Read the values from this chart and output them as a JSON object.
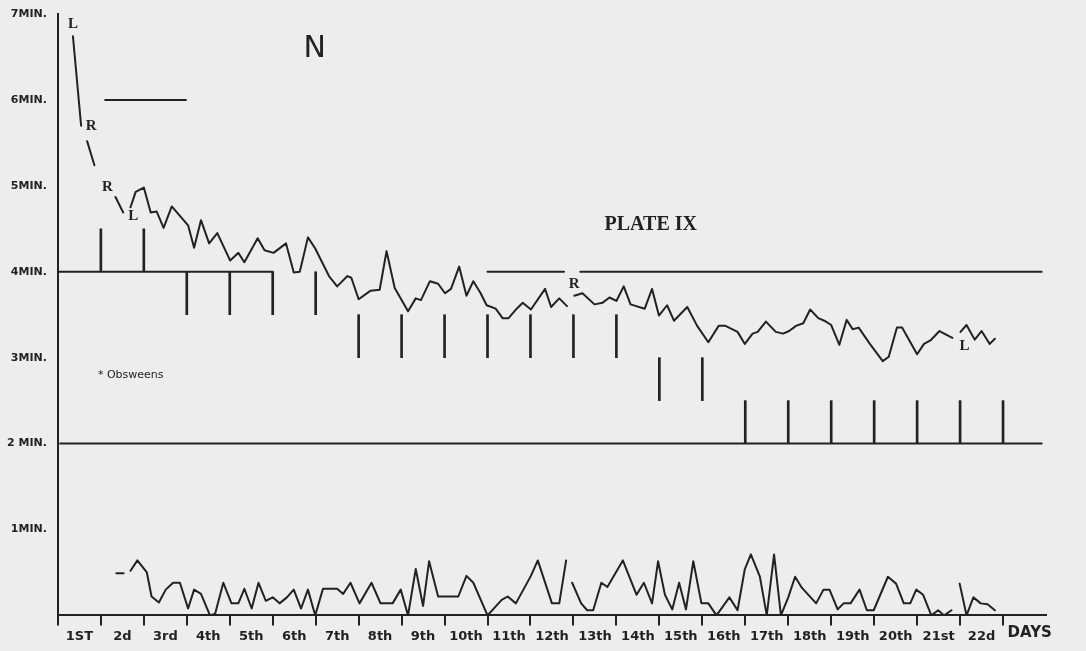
{
  "chart_data": {
    "type": "line",
    "title": "PLATE IX",
    "subtitle": "N",
    "xlabel": "DAYS",
    "xlim": [
      0,
      23
    ],
    "ylim": [
      0,
      7
    ],
    "xticks": [
      {
        "value": 0.5,
        "label": "1ST"
      },
      {
        "value": 1.5,
        "label": "2d"
      },
      {
        "value": 2.5,
        "label": "3rd"
      },
      {
        "value": 3.5,
        "label": "4th"
      },
      {
        "value": 4.5,
        "label": "5th"
      },
      {
        "value": 5.5,
        "label": "6th"
      },
      {
        "value": 6.5,
        "label": "7th"
      },
      {
        "value": 7.5,
        "label": "8th"
      },
      {
        "value": 8.5,
        "label": "9th"
      },
      {
        "value": 9.5,
        "label": "10th"
      },
      {
        "value": 10.5,
        "label": "11th"
      },
      {
        "value": 11.5,
        "label": "12th"
      },
      {
        "value": 12.5,
        "label": "13th"
      },
      {
        "value": 13.5,
        "label": "14th"
      },
      {
        "value": 14.5,
        "label": "15th"
      },
      {
        "value": 15.5,
        "label": "16th"
      },
      {
        "value": 16.5,
        "label": "17th"
      },
      {
        "value": 17.5,
        "label": "18th"
      },
      {
        "value": 18.5,
        "label": "19th"
      },
      {
        "value": 19.5,
        "label": "20th"
      },
      {
        "value": 20.5,
        "label": "21st"
      },
      {
        "value": 21.5,
        "label": "22d"
      }
    ],
    "yticks": [
      {
        "value": 0,
        "label": null
      },
      {
        "value": 1,
        "label": "1MIN."
      },
      {
        "value": 2,
        "label": "2 MIN."
      },
      {
        "value": 3,
        "label": "3MIN."
      },
      {
        "value": 4,
        "label": "4MIN."
      },
      {
        "value": 5,
        "label": "5MIN."
      },
      {
        "value": 6,
        "label": "6MIN."
      },
      {
        "value": 7,
        "label": "7MIN."
      }
    ],
    "annotations": [
      {
        "text": "L",
        "x": 0.35,
        "y": 6.74
      },
      {
        "text": "R",
        "x": 0.54,
        "y": 5.7
      },
      {
        "text": "R",
        "x": 1.34,
        "y": 4.87
      },
      {
        "text": "L",
        "x": 1.52,
        "y": 4.69
      },
      {
        "text": "R",
        "x": 12.02,
        "y": 3.72
      },
      {
        "text": "L",
        "x": 21.01,
        "y": 3.3
      },
      "* Obsweens"
    ],
    "series": [
      {
        "color": "#222222",
        "x": [
          0.35,
          0.54,
          0.6,
          0.68,
          0.85,
          1.0,
          1.34,
          1.52,
          1.6,
          1.69,
          1.81,
          2.0,
          2.16,
          2.3,
          2.46,
          2.65,
          3.03,
          3.17,
          3.33,
          3.52,
          3.71,
          4.01,
          4.2,
          4.34,
          4.65,
          4.81,
          5.02,
          5.31,
          5.49,
          5.63,
          5.82,
          5.99,
          6.31,
          6.5,
          6.74,
          6.83,
          7.0,
          7.28,
          7.49,
          7.65,
          7.84,
          8.15,
          8.33,
          8.45,
          8.66,
          8.85,
          9.01,
          9.15,
          9.34,
          9.51,
          9.67,
          9.84,
          9.98,
          10.19,
          10.35,
          10.49,
          10.68,
          10.82,
          11.01,
          11.34,
          11.48,
          11.67,
          11.85,
          11.93,
          12.02,
          12.21,
          12.49,
          12.68,
          12.84,
          13.0,
          13.17,
          13.33,
          13.66,
          13.83,
          13.99,
          14.18,
          14.34,
          14.65,
          14.88,
          15.14,
          15.38,
          15.54,
          15.82,
          15.99,
          16.17,
          16.29,
          16.48,
          16.71,
          16.88,
          17.02,
          17.18,
          17.35,
          17.51,
          17.7,
          17.84,
          18.0,
          18.19,
          18.36,
          18.5,
          18.64,
          18.9,
          19.2,
          19.34,
          19.53,
          19.65,
          20.0,
          20.16,
          20.31,
          20.52,
          20.82,
          20.9,
          21.01,
          21.15,
          21.34,
          21.5,
          21.69,
          21.81
        ],
        "values": [
          6.74,
          5.7,
          null,
          5.52,
          5.24,
          null,
          4.87,
          4.69,
          null,
          4.75,
          4.93,
          4.98,
          4.69,
          4.7,
          4.51,
          4.76,
          4.54,
          4.28,
          4.6,
          4.33,
          4.45,
          4.13,
          4.22,
          4.11,
          4.39,
          4.25,
          4.22,
          4.33,
          3.99,
          4.0,
          4.4,
          4.27,
          3.95,
          3.83,
          3.95,
          3.93,
          3.68,
          3.78,
          3.79,
          4.24,
          3.81,
          3.54,
          3.69,
          3.67,
          3.89,
          3.86,
          3.75,
          3.8,
          4.06,
          3.72,
          3.89,
          3.75,
          3.61,
          3.57,
          3.46,
          3.46,
          3.57,
          3.64,
          3.56,
          3.8,
          3.59,
          3.69,
          3.6,
          null,
          3.72,
          3.75,
          3.62,
          3.64,
          3.7,
          3.66,
          3.83,
          3.62,
          3.57,
          3.8,
          3.49,
          3.61,
          3.43,
          3.59,
          3.37,
          3.18,
          3.37,
          3.37,
          3.3,
          3.16,
          3.28,
          3.3,
          3.42,
          3.3,
          3.28,
          3.31,
          3.37,
          3.4,
          3.56,
          3.46,
          3.43,
          3.38,
          3.15,
          3.44,
          3.33,
          3.35,
          3.16,
          2.96,
          3.01,
          3.35,
          3.35,
          3.04,
          3.16,
          3.2,
          3.31,
          3.23,
          null,
          3.3,
          3.38,
          3.21,
          3.31,
          3.16,
          3.22
        ]
      },
      {
        "color": "#222222",
        "x": [
          1.36,
          1.53,
          1.6,
          1.69,
          1.85,
          2.07,
          2.18,
          2.35,
          2.51,
          2.68,
          2.84,
          3.03,
          3.17,
          3.33,
          3.54,
          3.66,
          3.85,
          4.04,
          4.2,
          4.34,
          4.51,
          4.67,
          4.84,
          5.0,
          5.16,
          5.33,
          5.49,
          5.66,
          5.82,
          5.99,
          6.17,
          6.5,
          6.64,
          6.81,
          7.02,
          7.3,
          7.51,
          7.79,
          7.98,
          8.15,
          8.33,
          8.5,
          8.64,
          8.85,
          9.32,
          9.51,
          9.67,
          10.0,
          10.33,
          10.47,
          10.66,
          11.01,
          11.17,
          11.5,
          11.67,
          11.83,
          11.9,
          11.97,
          12.18,
          12.32,
          12.46,
          12.65,
          12.79,
          13.15,
          13.47,
          13.64,
          13.83,
          13.97,
          14.13,
          14.3,
          14.46,
          14.62,
          14.79,
          14.98,
          15.14,
          15.33,
          15.63,
          15.82,
          15.99,
          16.13,
          16.34,
          16.5,
          16.67,
          16.83,
          17.0,
          17.16,
          17.32,
          17.65,
          17.82,
          17.96,
          18.15,
          18.29,
          18.45,
          18.66,
          18.83,
          18.99,
          19.32,
          19.51,
          19.69,
          19.84,
          19.98,
          20.14,
          20.33,
          20.49,
          20.63,
          20.8,
          20.9,
          20.99,
          21.15,
          21.31,
          21.48,
          21.64,
          21.81
        ],
        "values": [
          0.49,
          0.49,
          null,
          0.52,
          0.64,
          0.5,
          0.22,
          0.15,
          0.3,
          0.38,
          0.38,
          0.08,
          0.3,
          0.25,
          0,
          0.02,
          0.38,
          0.14,
          0.14,
          0.31,
          0.08,
          0.38,
          0.17,
          0.21,
          0.14,
          0.21,
          0.3,
          0.08,
          0.3,
          0,
          0.31,
          0.31,
          0.25,
          0.38,
          0.14,
          0.38,
          0.14,
          0.14,
          0.3,
          0,
          0.54,
          0.11,
          0.63,
          0.22,
          0.22,
          0.46,
          0.38,
          0,
          0.18,
          0.22,
          0.14,
          0.46,
          0.64,
          0.14,
          0.14,
          0.64,
          null,
          0.38,
          0.14,
          0.06,
          0.06,
          0.38,
          0.33,
          0.64,
          0.24,
          0.38,
          0.14,
          0.63,
          0.24,
          0.07,
          0.38,
          0.07,
          0.63,
          0.14,
          0.14,
          0,
          0.21,
          0.06,
          0.54,
          0.71,
          0.45,
          0,
          0.71,
          0,
          0.21,
          0.45,
          0.32,
          0.14,
          0.3,
          0.3,
          0.07,
          0.14,
          0.14,
          0.3,
          0.06,
          0.06,
          0.45,
          0.37,
          0.14,
          0.14,
          0.3,
          0.24,
          0,
          0.06,
          0,
          0.06,
          null,
          0.37,
          0,
          0.21,
          0.14,
          0.13,
          0.06
        ]
      },
      {
        "color": "#222222",
        "x": [
          0,
          5
        ],
        "values": [
          4,
          4
        ]
      },
      {
        "color": "#222222",
        "x": [
          1.1,
          2.98
        ],
        "values": [
          6,
          6
        ]
      },
      {
        "color": "#222222",
        "x": [
          10,
          11.78
        ],
        "values": [
          4,
          4
        ]
      },
      {
        "color": "#222222",
        "x": [
          12.16,
          22.9
        ],
        "values": [
          4,
          4
        ]
      },
      {
        "color": "#222222",
        "x": [
          0.05,
          22.9
        ],
        "values": [
          2,
          2
        ]
      },
      {
        "type": "bar",
        "color": "#222222",
        "x": [
          1,
          2,
          3,
          4,
          5,
          6,
          7,
          8,
          9,
          10,
          11,
          12,
          13,
          14,
          15,
          16,
          17,
          18,
          19,
          20,
          21,
          22
        ],
        "base": [
          4,
          4,
          3.5,
          3.5,
          3.5,
          3.5,
          3,
          3,
          3,
          3,
          3,
          3,
          3,
          2.5,
          2.5,
          2,
          2,
          2,
          2,
          2,
          2,
          2
        ],
        "values": [
          0.5,
          0.5,
          0.5,
          0.5,
          0.5,
          0.5,
          0.5,
          0.5,
          0.5,
          0.5,
          0.5,
          0.5,
          0.5,
          0.5,
          0.5,
          0.5,
          0.5,
          0.5,
          0.5,
          0.5,
          0.5,
          0.5
        ]
      }
    ]
  }
}
